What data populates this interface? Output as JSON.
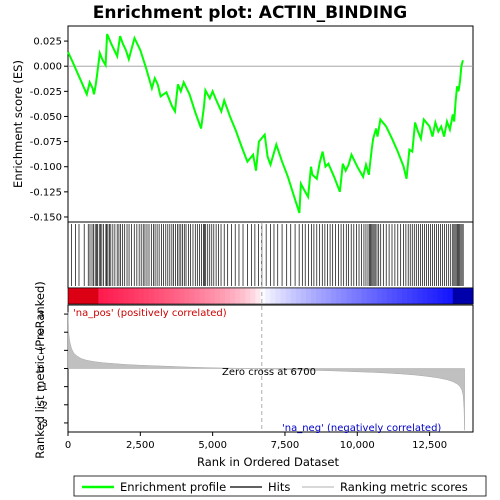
{
  "chart_data": {
    "type": "line",
    "title": "Enrichment plot: ACTIN_BINDING",
    "es_panel": {
      "ylabel": "Enrichment score (ES)",
      "ylim": [
        -0.155,
        0.04
      ],
      "yticks": [
        0.025,
        0.0,
        -0.025,
        -0.05,
        -0.075,
        -0.1,
        -0.125,
        -0.15
      ],
      "ytick_labels": [
        "0.025",
        "0.000",
        "-0.025",
        "-0.050",
        "-0.075",
        "-0.100",
        "-0.125",
        "-0.150"
      ],
      "series": [
        {
          "name": "Enrichment profile",
          "color": "#00ff00",
          "x": [
            0,
            150,
            300,
            500,
            650,
            750,
            850,
            900,
            950,
            1000,
            1100,
            1200,
            1300,
            1350,
            1500,
            1700,
            1800,
            1900,
            2000,
            2100,
            2300,
            2500,
            2700,
            2900,
            3000,
            3100,
            3200,
            3400,
            3600,
            3700,
            3800,
            3900,
            4000,
            4200,
            4400,
            4600,
            4700,
            4750,
            4900,
            5000,
            5100,
            5300,
            5400,
            5600,
            5800,
            6000,
            6200,
            6400,
            6500,
            6600,
            6800,
            6900,
            7000,
            7200,
            7400,
            7600,
            7800,
            8000,
            8050,
            8200,
            8300,
            8400,
            8450,
            8600,
            8700,
            8800,
            8900,
            9000,
            9200,
            9400,
            9500,
            9600,
            9700,
            9800,
            10000,
            10200,
            10300,
            10400,
            10450,
            10500,
            10550,
            10650,
            10700,
            10800,
            11000,
            11200,
            11400,
            11600,
            11700,
            11800,
            11900,
            12000,
            12100,
            12200,
            12300,
            12500,
            12600,
            12700,
            12800,
            12900,
            13000,
            13100,
            13200,
            13300,
            13350,
            13400,
            13450,
            13500,
            13550,
            13600,
            13650
          ],
          "y": [
            0.014,
            0.005,
            -0.005,
            -0.018,
            -0.028,
            -0.016,
            -0.022,
            -0.028,
            -0.02,
            -0.01,
            0.013,
            0.006,
            0.001,
            0.032,
            0.022,
            0.01,
            0.03,
            0.022,
            0.016,
            0.007,
            0.028,
            0.016,
            -0.002,
            -0.022,
            -0.012,
            -0.018,
            -0.03,
            -0.026,
            -0.04,
            -0.045,
            -0.018,
            -0.025,
            -0.016,
            -0.028,
            -0.046,
            -0.062,
            -0.04,
            -0.024,
            -0.032,
            -0.025,
            -0.032,
            -0.045,
            -0.034,
            -0.05,
            -0.064,
            -0.08,
            -0.095,
            -0.088,
            -0.104,
            -0.075,
            -0.068,
            -0.09,
            -0.098,
            -0.078,
            -0.095,
            -0.11,
            -0.128,
            -0.146,
            -0.117,
            -0.125,
            -0.13,
            -0.1,
            -0.108,
            -0.112,
            -0.096,
            -0.085,
            -0.1,
            -0.097,
            -0.11,
            -0.125,
            -0.097,
            -0.104,
            -0.098,
            -0.088,
            -0.1,
            -0.11,
            -0.098,
            -0.108,
            -0.095,
            -0.082,
            -0.072,
            -0.062,
            -0.07,
            -0.053,
            -0.06,
            -0.072,
            -0.085,
            -0.1,
            -0.112,
            -0.083,
            -0.085,
            -0.056,
            -0.065,
            -0.072,
            -0.053,
            -0.06,
            -0.07,
            -0.056,
            -0.065,
            -0.06,
            -0.07,
            -0.055,
            -0.063,
            -0.048,
            -0.055,
            -0.035,
            -0.02,
            -0.025,
            -0.015,
            0.0,
            0.006
          ]
        }
      ],
      "hits": [
        120,
        260,
        380,
        560,
        700,
        760,
        830,
        880,
        940,
        980,
        1020,
        1080,
        1120,
        1170,
        1230,
        1310,
        1340,
        1380,
        1430,
        1480,
        1550,
        1620,
        1700,
        1760,
        1820,
        1890,
        1960,
        2040,
        2110,
        2200,
        2290,
        2380,
        2460,
        2530,
        2600,
        2660,
        2730,
        2800,
        2880,
        2950,
        3010,
        3080,
        3150,
        3230,
        3300,
        3380,
        3450,
        3520,
        3590,
        3650,
        3720,
        3780,
        3840,
        3900,
        3960,
        4020,
        4080,
        4160,
        4240,
        4320,
        4400,
        4470,
        4540,
        4610,
        4680,
        4720,
        4760,
        4830,
        4900,
        4970,
        5040,
        5120,
        5200,
        5290,
        5400,
        5520,
        5650,
        5780,
        5910,
        6050,
        6200,
        6340,
        6460,
        6580,
        6700,
        6850,
        7000,
        7120,
        7250,
        7400,
        7560,
        7700,
        7850,
        7990,
        8100,
        8200,
        8310,
        8420,
        8500,
        8600,
        8700,
        8790,
        8880,
        8970,
        9060,
        9150,
        9250,
        9350,
        9440,
        9530,
        9620,
        9700,
        9790,
        9880,
        9970,
        10060,
        10150,
        10230,
        10300,
        10370,
        10420,
        10460,
        10500,
        10540,
        10580,
        10620,
        10680,
        10740,
        10810,
        10900,
        11000,
        11100,
        11200,
        11300,
        11400,
        11500,
        11600,
        11680,
        11760,
        11830,
        11900,
        11970,
        12040,
        12110,
        12180,
        12250,
        12320,
        12390,
        12460,
        12530,
        12600,
        12670,
        12740,
        12810,
        12880,
        12950,
        13020,
        13090,
        13160,
        13230,
        13300,
        13340,
        13380,
        13420,
        13460,
        13500,
        13540,
        13580,
        13620,
        13660
      ]
    },
    "metric_panel": {
      "ylabel": "Ranked list metric (PreRanked)",
      "ylim": [
        -3.5,
        3.5
      ],
      "yticks": [
        3,
        2,
        1,
        0,
        -1,
        -2,
        -3
      ],
      "ytick_labels": [
        "3",
        "2",
        "1",
        "0",
        "-1",
        "-2",
        "-3"
      ],
      "xlabel": "Rank in Ordered Dataset",
      "xlim": [
        0,
        14000
      ],
      "xticks": [
        0,
        2500,
        5000,
        7500,
        10000,
        12500
      ],
      "xtick_labels": [
        "0",
        "2,500",
        "5,000",
        "7,500",
        "10,000",
        "12,500"
      ],
      "metric_curve": {
        "x": [
          0,
          20,
          60,
          120,
          200,
          300,
          450,
          650,
          900,
          1200,
          1600,
          2000,
          2500,
          3000,
          3500,
          4000,
          4500,
          5000,
          5500,
          6000,
          6500,
          6700,
          7000,
          7500,
          8000,
          8500,
          9000,
          9500,
          10000,
          10500,
          11000,
          11500,
          12000,
          12400,
          12800,
          13100,
          13300,
          13450,
          13550,
          13620,
          13660,
          13690,
          13710
        ],
        "y": [
          3.1,
          2.0,
          1.5,
          1.1,
          0.85,
          0.7,
          0.55,
          0.45,
          0.38,
          0.32,
          0.27,
          0.22,
          0.18,
          0.15,
          0.12,
          0.09,
          0.06,
          0.04,
          0.02,
          0.01,
          0.002,
          0.0,
          -0.02,
          -0.05,
          -0.08,
          -0.1,
          -0.12,
          -0.15,
          -0.18,
          -0.21,
          -0.25,
          -0.3,
          -0.36,
          -0.43,
          -0.52,
          -0.62,
          -0.72,
          -0.85,
          -1.0,
          -1.2,
          -1.5,
          -2.2,
          -3.4
        ]
      },
      "zero_cross": 6700,
      "annotations": {
        "pos": "'na_pos' (positively correlated)",
        "neg": "'na_neg' (negatively correlated)",
        "zero": "Zero cross at 6700"
      },
      "colors": {
        "pos": "#cc0000",
        "neg": "#0000cc",
        "fill": "#c0c0c0"
      }
    },
    "legend": [
      {
        "label": "Enrichment profile",
        "color": "#00ff00"
      },
      {
        "label": "Hits",
        "color": "#000000"
      },
      {
        "label": "Ranking metric scores",
        "color": "#c0c0c0"
      }
    ],
    "grid": false
  }
}
